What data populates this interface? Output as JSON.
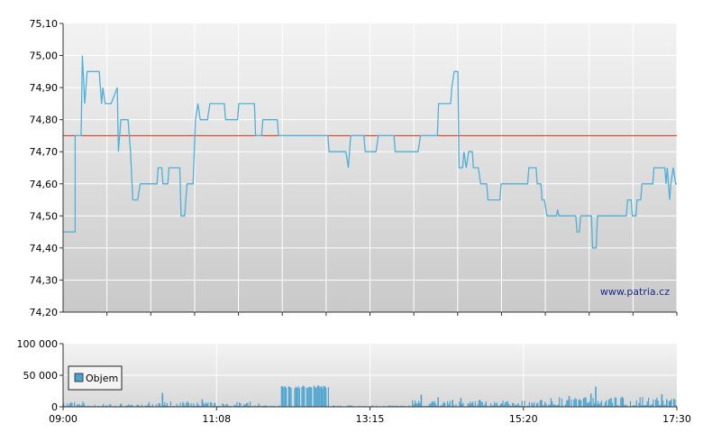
{
  "chart_data": [
    {
      "type": "line",
      "watermark": "www.patria.cz",
      "y_ticks": [
        "75,10",
        "75,00",
        "74,90",
        "74,80",
        "74,70",
        "74,60",
        "74,50",
        "74,40",
        "74,30",
        "74,20"
      ],
      "ylim": [
        74.2,
        75.1
      ],
      "xlim_minutes": [
        540,
        1050
      ],
      "reference_line": {
        "value": 74.75,
        "color": "#e0402a"
      },
      "line_color": "#4fb0d8",
      "grid": true,
      "series": [
        {
          "points": [
            [
              540,
              74.45
            ],
            [
              550,
              74.45
            ],
            [
              550,
              74.75
            ],
            [
              555,
              74.75
            ],
            [
              556,
              75.0
            ],
            [
              558,
              74.85
            ],
            [
              560,
              74.95
            ],
            [
              570,
              74.95
            ],
            [
              572,
              74.85
            ],
            [
              573,
              74.9
            ],
            [
              575,
              74.85
            ],
            [
              580,
              74.85
            ],
            [
              585,
              74.9
            ],
            [
              586,
              74.7
            ],
            [
              588,
              74.8
            ],
            [
              594,
              74.8
            ],
            [
              596,
              74.7
            ],
            [
              598,
              74.55
            ],
            [
              602,
              74.55
            ],
            [
              604,
              74.6
            ],
            [
              618,
              74.6
            ],
            [
              619,
              74.65
            ],
            [
              622,
              74.65
            ],
            [
              623,
              74.6
            ],
            [
              627,
              74.6
            ],
            [
              628,
              74.65
            ],
            [
              637,
              74.65
            ],
            [
              638,
              74.5
            ],
            [
              641,
              74.5
            ],
            [
              643,
              74.6
            ],
            [
              648,
              74.6
            ],
            [
              650,
              74.8
            ],
            [
              652,
              74.85
            ],
            [
              654,
              74.8
            ],
            [
              660,
              74.8
            ],
            [
              662,
              74.85
            ],
            [
              674,
              74.85
            ],
            [
              675,
              74.8
            ],
            [
              685,
              74.8
            ],
            [
              686,
              74.85
            ],
            [
              699,
              74.85
            ],
            [
              700,
              74.75
            ],
            [
              705,
              74.75
            ],
            [
              706,
              74.8
            ],
            [
              718,
              74.8
            ],
            [
              719,
              74.75
            ],
            [
              760,
              74.75
            ],
            [
              761,
              74.7
            ],
            [
              775,
              74.7
            ],
            [
              777,
              74.65
            ],
            [
              779,
              74.75
            ],
            [
              790,
              74.75
            ],
            [
              791,
              74.7
            ],
            [
              800,
              74.7
            ],
            [
              802,
              74.75
            ],
            [
              815,
              74.75
            ],
            [
              816,
              74.7
            ],
            [
              835,
              74.7
            ],
            [
              837,
              74.75
            ],
            [
              851,
              74.75
            ],
            [
              852,
              74.85
            ],
            [
              862,
              74.85
            ],
            [
              863,
              74.9
            ],
            [
              865,
              74.95
            ],
            [
              868,
              74.95
            ],
            [
              869,
              74.65
            ],
            [
              872,
              74.65
            ],
            [
              873,
              74.7
            ],
            [
              875,
              74.65
            ],
            [
              877,
              74.7
            ],
            [
              880,
              74.7
            ],
            [
              881,
              74.65
            ],
            [
              885,
              74.65
            ],
            [
              887,
              74.6
            ],
            [
              892,
              74.6
            ],
            [
              893,
              74.55
            ],
            [
              903,
              74.55
            ],
            [
              904,
              74.6
            ],
            [
              926,
              74.6
            ],
            [
              927,
              74.65
            ],
            [
              933,
              74.65
            ],
            [
              934,
              74.6
            ],
            [
              937,
              74.6
            ],
            [
              938,
              74.55
            ],
            [
              940,
              74.55
            ],
            [
              942,
              74.5
            ],
            [
              950,
              74.5
            ],
            [
              951,
              74.52
            ],
            [
              952,
              74.5
            ],
            [
              966,
              74.5
            ],
            [
              967,
              74.45
            ],
            [
              969,
              74.45
            ],
            [
              970,
              74.5
            ],
            [
              979,
              74.5
            ],
            [
              980,
              74.4
            ],
            [
              983,
              74.4
            ],
            [
              984,
              74.5
            ],
            [
              1008,
              74.5
            ],
            [
              1009,
              74.55
            ],
            [
              1012,
              74.55
            ],
            [
              1013,
              74.5
            ],
            [
              1016,
              74.5
            ],
            [
              1017,
              74.55
            ],
            [
              1020,
              74.55
            ],
            [
              1021,
              74.6
            ],
            [
              1030,
              74.6
            ],
            [
              1031,
              74.65
            ],
            [
              1040,
              74.65
            ],
            [
              1041,
              74.6
            ],
            [
              1042,
              74.65
            ],
            [
              1044,
              74.55
            ],
            [
              1045,
              74.6
            ],
            [
              1047,
              74.65
            ],
            [
              1049,
              74.6
            ],
            [
              1050,
              74.6
            ]
          ]
        }
      ]
    },
    {
      "type": "bar",
      "y_ticks": [
        "100 000",
        "50 000",
        "0"
      ],
      "ylim": [
        0,
        100000
      ],
      "x_ticks": [
        "09:00",
        "11:08",
        "13:15",
        "15:20",
        "17:30"
      ],
      "xlim_minutes": [
        540,
        1050
      ],
      "legend": {
        "label": "Objem",
        "placement": "left"
      },
      "bar_color": "#4aa3cf",
      "grid": true,
      "segments": [
        {
          "from": 540,
          "to": 562,
          "amplitude": 10000,
          "pattern": 1
        },
        {
          "from": 562,
          "to": 603,
          "amplitude": 6000,
          "pattern": 2
        },
        {
          "from": 603,
          "to": 705,
          "amplitude": 9000,
          "pattern": 3
        },
        {
          "from": 705,
          "to": 720,
          "amplitude": 3000,
          "pattern": 4
        },
        {
          "from": 720,
          "to": 761,
          "amplitude": 34000,
          "pattern": 5
        },
        {
          "from": 761,
          "to": 830,
          "amplitude": 2500,
          "pattern": 6
        },
        {
          "from": 830,
          "to": 945,
          "amplitude": 11000,
          "pattern": 7
        },
        {
          "from": 945,
          "to": 1050,
          "amplitude": 16000,
          "pattern": 8
        }
      ],
      "spikes": [
        [
          622,
          22000
        ],
        [
          655,
          12000
        ],
        [
          837,
          19000
        ],
        [
          851,
          15000
        ],
        [
          863,
          11000
        ],
        [
          870,
          14000
        ],
        [
          937,
          11000
        ],
        [
          960,
          17000
        ],
        [
          968,
          11000
        ],
        [
          978,
          21000
        ],
        [
          982,
          32000
        ],
        [
          1004,
          16000
        ],
        [
          1037,
          20000
        ],
        [
          1041,
          11000
        ],
        [
          1044,
          10000
        ]
      ]
    }
  ]
}
